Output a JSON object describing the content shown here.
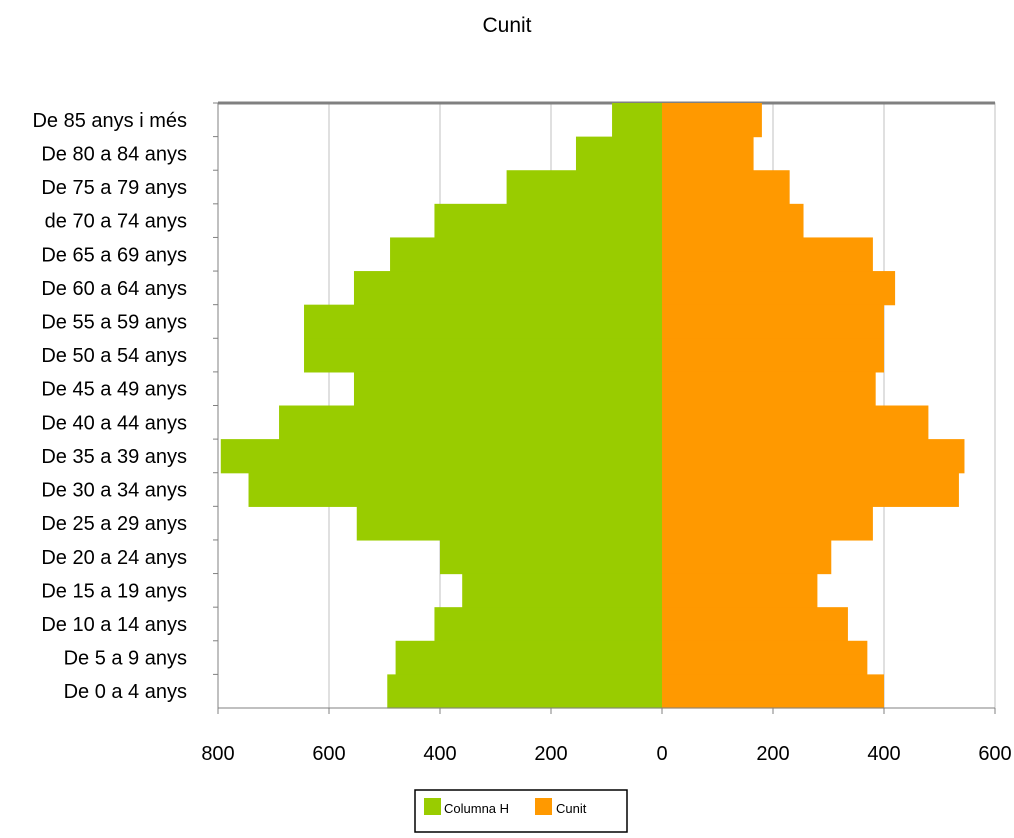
{
  "chart_data": {
    "type": "bar",
    "title": "Cunit",
    "orientation": "horizontal-population-pyramid",
    "categories": [
      "De 85 anys i més",
      "De 80 a 84 anys",
      "De 75 a 79 anys",
      "de 70 a 74 anys",
      "De 65 a 69 anys",
      "De 60 a 64 anys",
      "De 55 a 59 anys",
      "De 50 a 54 anys",
      "De 45 a 49 anys",
      "De 40 a 44 anys",
      "De 35 a 39 anys",
      "De 30 a 34 anys",
      "De 25 a 29 anys",
      "De 20 a 24 anys",
      "De 15 a 19 anys",
      "De 10 a 14 anys",
      "De 5 a 9 anys",
      "De 0 a 4 anys"
    ],
    "series": [
      {
        "name": "Columna H",
        "color": "#99cc00",
        "values": [
          -90,
          -155,
          -280,
          -410,
          -490,
          -555,
          -645,
          -645,
          -555,
          -690,
          -795,
          -745,
          -550,
          -400,
          -360,
          -410,
          -480,
          -495
        ]
      },
      {
        "name": "Cunit",
        "color": "#ff9900",
        "values": [
          180,
          165,
          230,
          255,
          380,
          420,
          400,
          400,
          385,
          480,
          545,
          535,
          380,
          305,
          280,
          335,
          370,
          400
        ]
      }
    ],
    "x_tick_labels": [
      "800",
      "600",
      "400",
      "200",
      "0",
      "200",
      "400",
      "600"
    ],
    "xlim": [
      -800,
      600
    ],
    "grid": true,
    "legend": "bottom"
  }
}
